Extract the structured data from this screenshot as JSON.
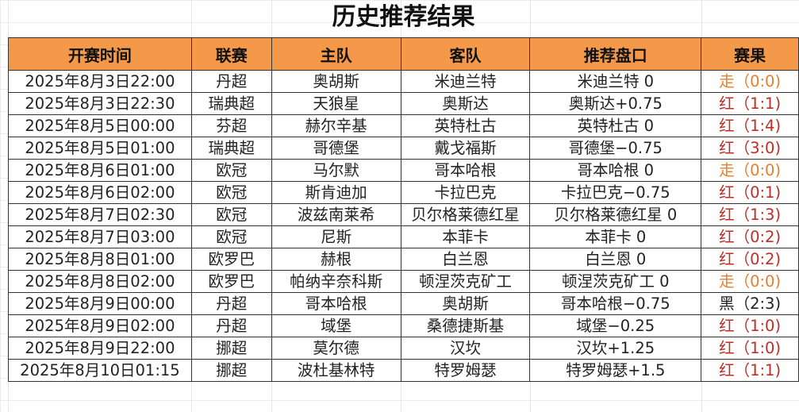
{
  "title": "历史推荐结果",
  "headers": [
    "开赛时间",
    "联赛",
    "主队",
    "客队",
    "推荐盘口",
    "赛果"
  ],
  "colors": {
    "header_bg": "#f4994a",
    "walk": "#e57f2e",
    "red": "#bf2e26",
    "black": "#222222"
  },
  "rows": [
    {
      "time": "2025年8月3日22:00",
      "league": "丹超",
      "home": "奥胡斯",
      "away": "米迪兰特",
      "pick": "米迪兰特 0",
      "result": "走（0:0)",
      "status": "walk"
    },
    {
      "time": "2025年8月3日22:30",
      "league": "瑞典超",
      "home": "天狼星",
      "away": "奥斯达",
      "pick": "奥斯达+0.75",
      "result": "红（1:1)",
      "status": "red"
    },
    {
      "time": "2025年8月5日00:00",
      "league": "芬超",
      "home": "赫尔辛基",
      "away": "英特杜古",
      "pick": "英特杜古 0",
      "result": "红（1:4)",
      "status": "red"
    },
    {
      "time": "2025年8月5日01:00",
      "league": "瑞典超",
      "home": "哥德堡",
      "away": "戴戈福斯",
      "pick": "哥德堡−0.75",
      "result": "红（3:0)",
      "status": "red"
    },
    {
      "time": "2025年8月6日01:00",
      "league": "欧冠",
      "home": "马尔默",
      "away": "哥本哈根",
      "pick": "哥本哈根 0",
      "result": "走（0:0)",
      "status": "walk"
    },
    {
      "time": "2025年8月6日02:00",
      "league": "欧冠",
      "home": "斯肯迪加",
      "away": "卡拉巴克",
      "pick": "卡拉巴克−0.75",
      "result": "红（0:1)",
      "status": "red"
    },
    {
      "time": "2025年8月7日02:30",
      "league": "欧冠",
      "home": "波兹南莱希",
      "away": "贝尔格莱德红星",
      "pick": "贝尔格莱德红星 0",
      "result": "红（1:3)",
      "status": "red"
    },
    {
      "time": "2025年8月7日03:00",
      "league": "欧冠",
      "home": "尼斯",
      "away": "本菲卡",
      "pick": "本菲卡 0",
      "result": "红（0:2)",
      "status": "red"
    },
    {
      "time": "2025年8月8日01:00",
      "league": "欧罗巴",
      "home": "赫根",
      "away": "白兰恩",
      "pick": "白兰恩 0",
      "result": "红（0:2)",
      "status": "red"
    },
    {
      "time": "2025年8月8日02:00",
      "league": "欧罗巴",
      "home": "帕纳辛奈科斯",
      "away": "顿涅茨克矿工",
      "pick": "顿涅茨克矿工 0",
      "result": "走（0:0)",
      "status": "walk"
    },
    {
      "time": "2025年8月9日00:00",
      "league": "丹超",
      "home": "哥本哈根",
      "away": "奥胡斯",
      "pick": "哥本哈根−0.75",
      "result": "黑（2:3)",
      "status": "black"
    },
    {
      "time": "2025年8月9日02:00",
      "league": "丹超",
      "home": "域堡",
      "away": "桑德捷斯基",
      "pick": "域堡−0.25",
      "result": "红（1:0)",
      "status": "red"
    },
    {
      "time": "2025年8月9日22:00",
      "league": "挪超",
      "home": "莫尔德",
      "away": "汉坎",
      "pick": "汉坎+1.25",
      "result": "红（1:0)",
      "status": "red"
    },
    {
      "time": "2025年8月10日01:15",
      "league": "挪超",
      "home": "波杜基林特",
      "away": "特罗姆瑟",
      "pick": "特罗姆瑟+1.5",
      "result": "红（1:1)",
      "status": "red"
    }
  ]
}
